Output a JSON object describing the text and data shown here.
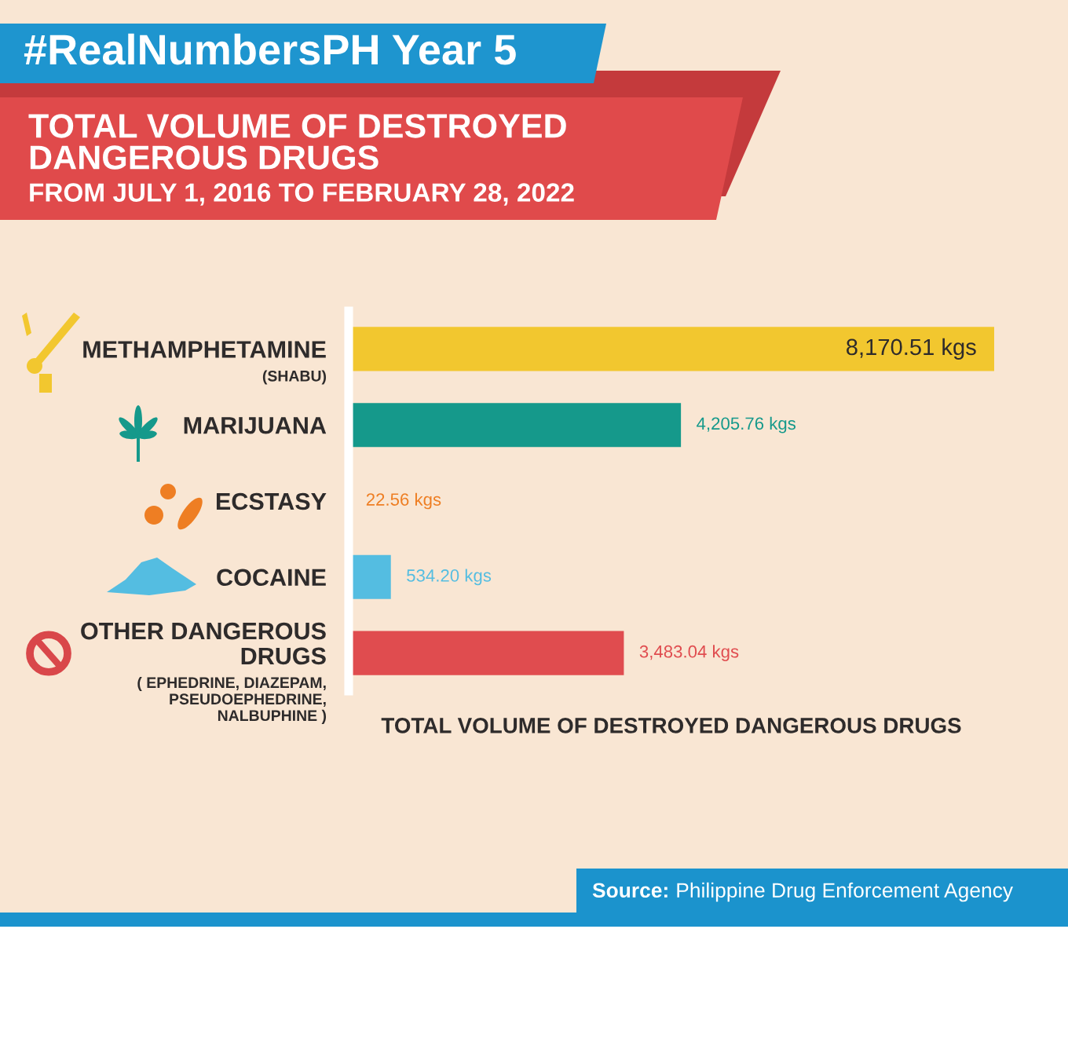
{
  "chart_data": {
    "type": "bar",
    "orientation": "horizontal",
    "title": "TOTAL VOLUME OF DESTROYED\nDANGEROUS DRUGS",
    "subtitle": "FROM JULY 1, 2016 TO FEBRUARY 28, 2022",
    "xlabel": "TOTAL VOLUME OF DESTROYED DANGEROUS DRUGS",
    "categories": [
      "METHAMPHETAMINE\n(SHABU)",
      "MARIJUANA",
      "ECSTASY",
      "COCAINE",
      "OTHER DANGEROUS DRUGS\n( EPHEDRINE, DIAZEPAM,\nPSEUDOEPHEDRINE,\nNALBUPHINE )"
    ],
    "values": [
      8170.51,
      4205.76,
      22.56,
      534.2,
      3483.04
    ],
    "colors": [
      "#f2c72f",
      "#15998b",
      "#ee7e23",
      "#54bde1",
      "#e04c4f"
    ],
    "value_labels": [
      "8,170.51 kgs",
      "4,205.76 kgs",
      "22.56 kgs",
      "534.20 kgs",
      "3,483.04 kgs"
    ],
    "tick_labels": "y",
    "grid": false,
    "annotations": [
      "#RealNumbersPH Year 5",
      "Source: Philippine Drug Enforcement Agency"
    ]
  }
}
